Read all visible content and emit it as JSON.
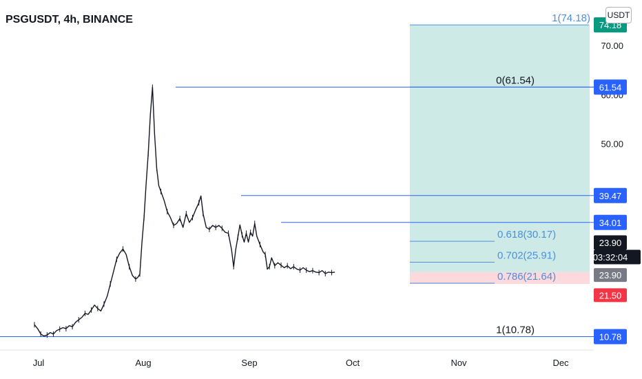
{
  "header": {
    "title": "PSGUSDT, 4h, BINANCE"
  },
  "currency_button": {
    "label": "USDT"
  },
  "price_axis": {
    "ticks": [
      "70.00",
      "60.00",
      "50.00"
    ],
    "badges": [
      {
        "label": "74.18",
        "color": "#089981"
      },
      {
        "label": "61.54",
        "color": "#2962ff"
      },
      {
        "label": "39.47",
        "color": "#2962ff"
      },
      {
        "label": "34.01",
        "color": "#2962ff"
      },
      {
        "label": "23.90",
        "color": "#131722"
      },
      {
        "label": "03:32:04",
        "color": "#131722"
      },
      {
        "label": "23.90",
        "color": "#787b86"
      },
      {
        "label": "21.50",
        "color": "#f23645"
      },
      {
        "label": "10.78",
        "color": "#2962ff"
      }
    ]
  },
  "time_axis": {
    "labels": [
      "Jul",
      "Aug",
      "Sep",
      "Oct",
      "Nov",
      "Dec"
    ]
  },
  "fib_labels": [
    "1(74.18)",
    "0(61.54)",
    "0.618(30.17)",
    "0.702(25.91)",
    "0.786(21.64)",
    "1(10.78)"
  ],
  "colors": {
    "accent": "#2962ff",
    "fib_blue": "#4a90e2",
    "profit_zone": "#cdeae6",
    "loss_zone": "#fcd9dc",
    "candles": "#131722"
  },
  "chart_data": {
    "type": "line",
    "symbol": "PSGUSDT",
    "interval": "4h",
    "exchange": "BINANCE",
    "x_label": "",
    "y_label": "",
    "ylim": [
      7.5,
      78
    ],
    "x_categories": [
      "Jul",
      "Aug",
      "Sep",
      "Oct",
      "Nov",
      "Dec"
    ],
    "series": [
      {
        "values": [
          [
            0,
            13.2
          ],
          [
            0.03,
            12.4
          ],
          [
            0.06,
            11.3
          ],
          [
            0.09,
            10.9
          ],
          [
            0.12,
            11.1
          ],
          [
            0.15,
            11.6
          ],
          [
            0.18,
            11.3
          ],
          [
            0.21,
            12.0
          ],
          [
            0.24,
            12.3
          ],
          [
            0.27,
            12.6
          ],
          [
            0.3,
            12.4
          ],
          [
            0.33,
            13.0
          ],
          [
            0.36,
            12.8
          ],
          [
            0.39,
            13.7
          ],
          [
            0.42,
            14.2
          ],
          [
            0.45,
            14.7
          ],
          [
            0.48,
            15.5
          ],
          [
            0.51,
            15.3
          ],
          [
            0.54,
            16.2
          ],
          [
            0.57,
            17.2
          ],
          [
            0.6,
            16.5
          ],
          [
            0.63,
            16.0
          ],
          [
            0.66,
            17.4
          ],
          [
            0.69,
            19.0
          ],
          [
            0.72,
            21.5
          ],
          [
            0.75,
            24.0
          ],
          [
            0.78,
            26.5
          ],
          [
            0.81,
            27.8
          ],
          [
            0.84,
            28.6
          ],
          [
            0.87,
            27.5
          ],
          [
            0.9,
            25.0
          ],
          [
            0.93,
            23.2
          ],
          [
            0.96,
            22.5
          ],
          [
            0.98,
            22.8
          ],
          [
            1.0,
            23.5
          ],
          [
            1.02,
            30.0
          ],
          [
            1.04,
            35.0
          ],
          [
            1.06,
            42.0
          ],
          [
            1.08,
            48.0
          ],
          [
            1.1,
            56.0
          ],
          [
            1.12,
            61.5
          ],
          [
            1.14,
            52.0
          ],
          [
            1.16,
            45.0
          ],
          [
            1.18,
            41.5
          ],
          [
            1.2,
            40.3
          ],
          [
            1.23,
            38.5
          ],
          [
            1.26,
            36.2
          ],
          [
            1.29,
            35.0
          ],
          [
            1.32,
            33.4
          ],
          [
            1.35,
            33.8
          ],
          [
            1.38,
            34.8
          ],
          [
            1.41,
            33.0
          ],
          [
            1.44,
            35.8
          ],
          [
            1.47,
            34.0
          ],
          [
            1.5,
            35.0
          ],
          [
            1.53,
            36.6
          ],
          [
            1.56,
            38.0
          ],
          [
            1.58,
            39.4
          ],
          [
            1.6,
            35.8
          ],
          [
            1.63,
            33.0
          ],
          [
            1.66,
            32.6
          ],
          [
            1.69,
            33.4
          ],
          [
            1.72,
            33.0
          ],
          [
            1.75,
            33.4
          ],
          [
            1.78,
            32.8
          ],
          [
            1.81,
            32.0
          ],
          [
            1.84,
            31.8
          ],
          [
            1.87,
            28.5
          ],
          [
            1.89,
            25.0
          ],
          [
            1.91,
            28.5
          ],
          [
            1.93,
            31.0
          ],
          [
            1.95,
            33.5
          ],
          [
            1.97,
            31.5
          ],
          [
            1.99,
            30.0
          ],
          [
            2.01,
            31.8
          ],
          [
            2.03,
            30.0
          ],
          [
            2.05,
            32.0
          ],
          [
            2.07,
            31.2
          ],
          [
            2.09,
            33.8
          ],
          [
            2.11,
            31.2
          ],
          [
            2.14,
            29.5
          ],
          [
            2.17,
            28.0
          ],
          [
            2.19,
            27.5
          ],
          [
            2.21,
            24.5
          ],
          [
            2.23,
            25.0
          ],
          [
            2.25,
            26.8
          ],
          [
            2.28,
            25.2
          ],
          [
            2.31,
            25.8
          ],
          [
            2.34,
            25.3
          ],
          [
            2.37,
            24.8
          ],
          [
            2.4,
            25.2
          ],
          [
            2.43,
            24.6
          ],
          [
            2.46,
            25.0
          ],
          [
            2.49,
            24.5
          ],
          [
            2.52,
            24.3
          ],
          [
            2.55,
            24.8
          ],
          [
            2.58,
            24.3
          ],
          [
            2.61,
            24.0
          ],
          [
            2.64,
            24.2
          ],
          [
            2.67,
            23.9
          ],
          [
            2.7,
            23.8
          ],
          [
            2.73,
            24.2
          ],
          [
            2.76,
            23.6
          ],
          [
            2.79,
            23.9
          ],
          [
            2.82,
            23.8
          ],
          [
            2.85,
            23.9
          ]
        ]
      }
    ],
    "fib_levels": [
      {
        "ratio": "1",
        "price": 74.18
      },
      {
        "ratio": "0",
        "price": 61.54
      },
      {
        "ratio": "0.618",
        "price": 30.17
      },
      {
        "ratio": "0.702",
        "price": 25.91
      },
      {
        "ratio": "0.786",
        "price": 21.64
      },
      {
        "ratio": "1",
        "price": 10.78
      }
    ],
    "horizontal_levels": [
      61.54,
      39.47,
      34.01,
      10.78
    ],
    "position": {
      "target": 74.18,
      "entry": 23.9,
      "stop": 21.5
    },
    "last_price": 23.9,
    "countdown": "03:32:04"
  }
}
